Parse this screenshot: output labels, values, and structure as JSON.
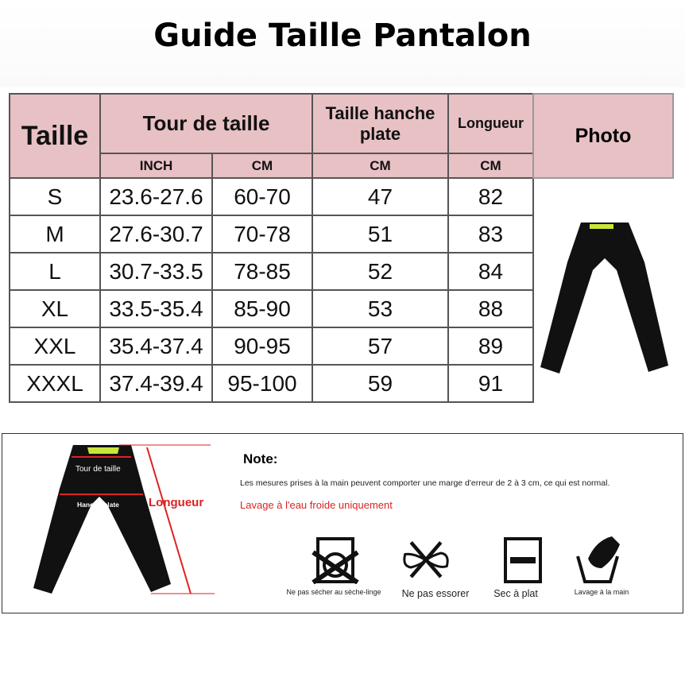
{
  "title": "Guide Taille Pantalon",
  "table": {
    "headers": {
      "size": "Taille",
      "waist": "Tour de taille",
      "hip": "Taille hanche plate",
      "length": "Longueur",
      "photo": "Photo",
      "inch": "INCH",
      "cm": "CM"
    },
    "rows": [
      [
        "S",
        "23.6-27.6",
        "60-70",
        "47",
        "82"
      ],
      [
        "M",
        "27.6-30.7",
        "70-78",
        "51",
        "83"
      ],
      [
        "L",
        "30.7-33.5",
        "78-85",
        "52",
        "84"
      ],
      [
        "XL",
        "33.5-35.4",
        "85-90",
        "53",
        "88"
      ],
      [
        "XXL",
        "35.4-37.4",
        "90-95",
        "57",
        "89"
      ],
      [
        "XXXL",
        "37.4-39.4",
        "95-100",
        "59",
        "91"
      ]
    ]
  },
  "diagram": {
    "waist": "Tour de taille",
    "hip": "Hanche plate",
    "length": "Longueur"
  },
  "note": {
    "title": "Note:",
    "text": "Les mesures prises à la main peuvent comporter une marge d'erreur de 2 à 3 cm, ce qui est normal.",
    "wash": "Lavage à l'eau froide uniquement"
  },
  "care": [
    {
      "label": "Ne pas sécher au sèche-linge",
      "icon": "no-tumble-dry-icon"
    },
    {
      "label": "Ne pas essorer",
      "icon": "no-wring-icon"
    },
    {
      "label": "Sec à plat",
      "icon": "dry-flat-icon"
    },
    {
      "label": "Lavage à la main",
      "icon": "hand-wash-icon"
    }
  ],
  "colors": {
    "header": "#e8c1c5",
    "accent": "#d22222"
  }
}
